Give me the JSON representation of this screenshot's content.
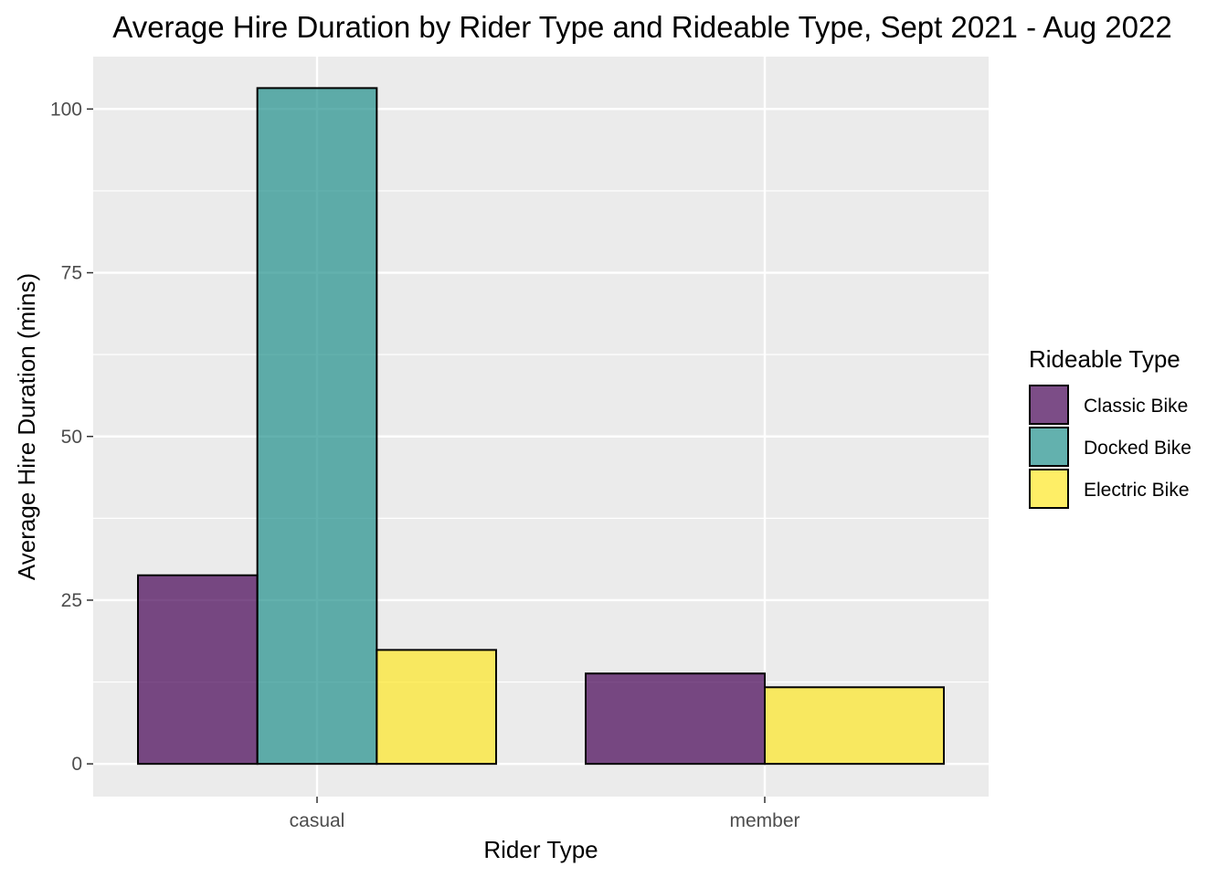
{
  "chart_data": {
    "type": "bar",
    "title": "Average Hire Duration by Rider Type and Rideable Type, Sept 2021 - Aug 2022",
    "xlabel": "Rider Type",
    "ylabel": "Average Hire Duration (mins)",
    "categories": [
      "casual",
      "member"
    ],
    "ylim": [
      -5,
      108
    ],
    "yticks": [
      0,
      25,
      50,
      75,
      100
    ],
    "grid": true,
    "legend": {
      "title": "Rideable Type",
      "position": "right"
    },
    "series": [
      {
        "name": "Classic Bike",
        "color": "#440154",
        "values": [
          28.8,
          13.8
        ]
      },
      {
        "name": "Docked Bike",
        "color": "#21908C",
        "values": [
          103.2,
          null
        ]
      },
      {
        "name": "Electric Bike",
        "color": "#FDE725",
        "values": [
          17.4,
          11.7
        ]
      }
    ]
  }
}
